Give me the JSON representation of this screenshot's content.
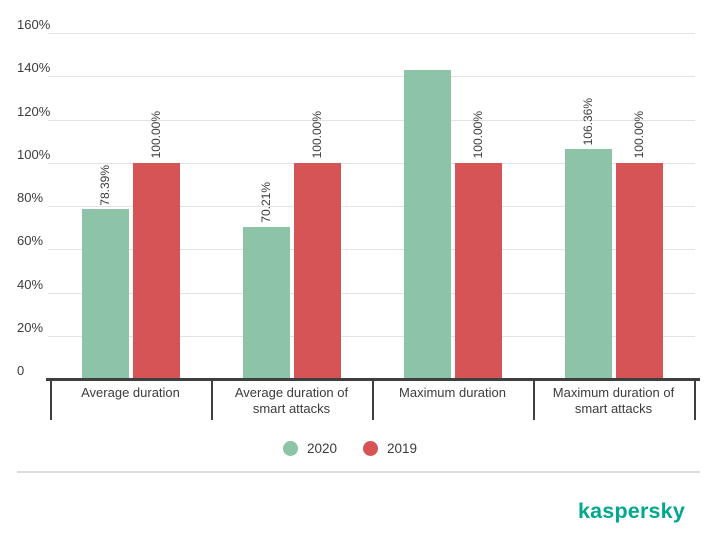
{
  "chart_data": {
    "type": "bar",
    "title": "",
    "categories": [
      "Average duration",
      "Average duration of smart attacks",
      "Maximum duration",
      "Maximum duration of smart attacks"
    ],
    "series": [
      {
        "name": "2020",
        "color": "#8dc3a7",
        "values": [
          78.39,
          70.21,
          142.9,
          106.36
        ],
        "bar_labels": [
          "78.39%",
          "70.21%",
          "",
          "106.36%"
        ]
      },
      {
        "name": "2019",
        "color": "#d65456",
        "values": [
          100,
          100,
          100,
          100
        ],
        "bar_labels": [
          "100.00%",
          "100.00%",
          "100.00%",
          "100.00%"
        ]
      }
    ],
    "ylim": [
      0,
      160
    ],
    "y_ticks": [
      {
        "value": 160,
        "label": "160%"
      },
      {
        "value": 140,
        "label": "140%"
      },
      {
        "value": 120,
        "label": "120%"
      },
      {
        "value": 100,
        "label": "100%"
      },
      {
        "value": 80,
        "label": "80%"
      },
      {
        "value": 60,
        "label": "60%"
      },
      {
        "value": 40,
        "label": "40%"
      },
      {
        "value": 20,
        "label": "20%"
      },
      {
        "value": 0,
        "label": "0"
      }
    ],
    "grid": true,
    "legend_position": "bottom"
  },
  "branding": {
    "logo_text": "kaspersky",
    "logo_color": "#00a88e"
  }
}
